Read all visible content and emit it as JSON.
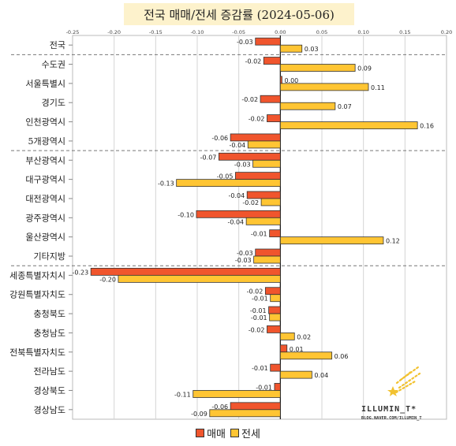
{
  "title": "전국 매매/전세 증감률 (2024-05-06)",
  "colors": {
    "sale": "#f0552d",
    "jeonse": "#ffc533"
  },
  "watermark": {
    "brand": "ILLUMIN_T*",
    "url": "BLOG.NAVER.COM/ILLUMIN_T"
  },
  "chart_data": {
    "type": "bar",
    "orientation": "horizontal",
    "title": "전국 매매/전세 증감률 (2024-05-06)",
    "xlim": [
      -0.25,
      0.2
    ],
    "x_ticks": [
      "-0.25",
      "-0.20",
      "-0.15",
      "-0.10",
      "-0.05",
      "0.00",
      "0.05",
      "0.10",
      "0.15",
      "0.20"
    ],
    "tick_values": [
      -0.25,
      -0.2,
      -0.15,
      -0.1,
      -0.05,
      0,
      0.05,
      0.1,
      0.15,
      0.2
    ],
    "grid": "vertical",
    "legend": "bottom",
    "group_separators_after": [
      0,
      5,
      11
    ],
    "categories": [
      "전국",
      "수도권",
      "서울특별시",
      "경기도",
      "인천광역시",
      "5개광역시",
      "부산광역시",
      "대구광역시",
      "대전광역시",
      "광주광역시",
      "울산광역시",
      "기타지방",
      "세종특별자치시",
      "강원특별자치도",
      "충청북도",
      "충청남도",
      "전북특별자치도",
      "전라남도",
      "경상북도",
      "경상남도"
    ],
    "series": [
      {
        "name": "매매",
        "values": [
          -0.03,
          -0.02,
          0.002,
          -0.024,
          -0.016,
          -0.06,
          -0.074,
          -0.054,
          -0.04,
          -0.101,
          -0.013,
          -0.03,
          -0.228,
          -0.018,
          -0.014,
          -0.016,
          0.008,
          -0.012,
          -0.007,
          -0.06
        ],
        "labels": [
          "-0.03",
          "-0.02",
          "0.00",
          "-0.02",
          "-0.02",
          "-0.06",
          "-0.07",
          "-0.05",
          "-0.04",
          "-0.10",
          "-0.01",
          "-0.03",
          "-0.23",
          "-0.02",
          "-0.01",
          "-0.02",
          "0.01",
          "-0.01",
          "-0.01",
          "-0.06"
        ]
      },
      {
        "name": "전세",
        "values": [
          0.026,
          0.09,
          0.106,
          0.066,
          0.165,
          -0.039,
          -0.033,
          -0.125,
          -0.023,
          -0.041,
          0.124,
          -0.032,
          -0.195,
          -0.012,
          -0.013,
          0.017,
          0.062,
          0.038,
          -0.105,
          -0.085
        ],
        "labels": [
          "0.03",
          "0.09",
          "0.11",
          "0.07",
          "0.16",
          "-0.04",
          "-0.03",
          "-0.13",
          "-0.02",
          "-0.04",
          "0.12",
          "-0.03",
          "-0.20",
          "-0.01",
          "-0.01",
          "0.02",
          "0.06",
          "0.04",
          "-0.11",
          "-0.09"
        ]
      }
    ]
  }
}
